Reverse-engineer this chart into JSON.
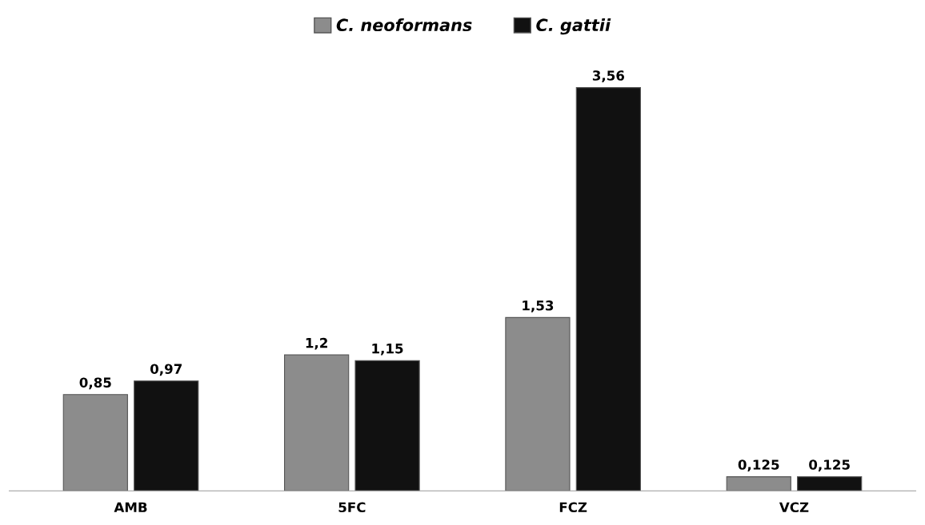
{
  "chart_data": {
    "type": "bar",
    "categories": [
      "AMB",
      "5FC",
      "FCZ",
      "VCZ"
    ],
    "series": [
      {
        "name": "C. neoformans",
        "color": "#8c8c8c",
        "values": [
          0.85,
          1.2,
          1.53,
          0.125
        ],
        "value_labels": [
          "0,85",
          "1,2",
          "1,53",
          "0,125"
        ]
      },
      {
        "name": "C. gattii",
        "color": "#111111",
        "values": [
          0.97,
          1.15,
          3.56,
          0.125
        ],
        "value_labels": [
          "0,97",
          "1,15",
          "3,56",
          "0,125"
        ]
      }
    ],
    "legend": "top",
    "grid": false
  }
}
